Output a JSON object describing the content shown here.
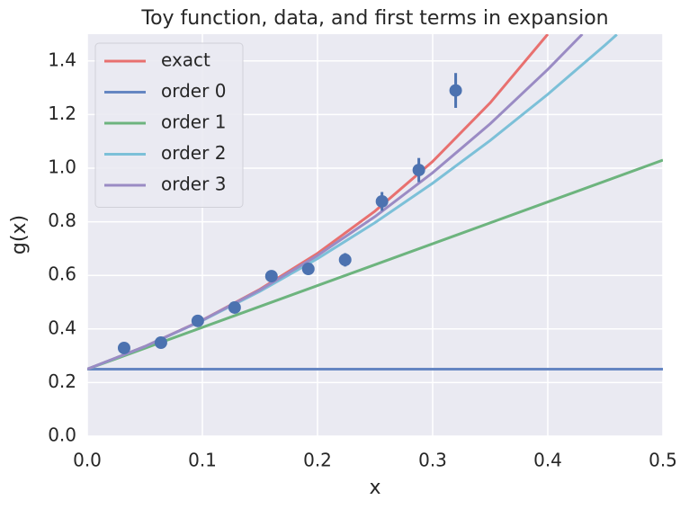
{
  "chart_data": {
    "type": "line",
    "title": "Toy function, data, and first terms in expansion",
    "xlabel": "x",
    "ylabel": "g(x)",
    "xlim": [
      0,
      0.5
    ],
    "ylim": [
      0,
      1.5
    ],
    "xticks": [
      {
        "value": 0,
        "label": "0.0"
      },
      0.1,
      0.2,
      0.3,
      0.4,
      0.5
    ],
    "yticks": [
      {
        "value": 0,
        "label": "0.0"
      },
      0.2,
      0.4,
      0.6,
      0.8,
      {
        "value": 1,
        "label": "1.0"
      },
      1.2,
      1.4
    ],
    "grid": true,
    "legend": "upper left",
    "series": [
      {
        "name": "exact",
        "color": "#e8706f",
        "x": [
          0,
          0.05,
          0.1,
          0.15,
          0.2,
          0.25,
          0.3,
          0.35,
          0.4
        ],
        "values": [
          0.25,
          0.3345,
          0.433,
          0.548,
          0.682,
          0.84,
          1.025,
          1.244,
          1.5
        ]
      },
      {
        "name": "order 0",
        "color": "#6586c2",
        "x": [
          0,
          0.5
        ],
        "values": [
          0.25,
          0.25
        ]
      },
      {
        "name": "order 1",
        "color": "#6db47e",
        "x": [
          0,
          0.5
        ],
        "values": [
          0.25,
          1.03
        ]
      },
      {
        "name": "order 2",
        "color": "#7cc0d8",
        "x": [
          0,
          0.05,
          0.1,
          0.15,
          0.2,
          0.25,
          0.3,
          0.35,
          0.4,
          0.45,
          0.46
        ],
        "values": [
          0.25,
          0.3343,
          0.4311,
          0.5405,
          0.6624,
          0.7969,
          0.9439,
          1.1035,
          1.2756,
          1.4603,
          1.4987
        ]
      },
      {
        "name": "order 3",
        "color": "#9a8bc4",
        "x": [
          0,
          0.05,
          0.1,
          0.15,
          0.2,
          0.25,
          0.3,
          0.35,
          0.4,
          0.43
        ],
        "values": [
          0.25,
          0.3345,
          0.4326,
          0.5454,
          0.674,
          0.8196,
          0.983,
          1.1657,
          1.3684,
          1.5
        ]
      }
    ],
    "points": {
      "color": "#4c72b0",
      "x": [
        0.032,
        0.064,
        0.096,
        0.128,
        0.16,
        0.192,
        0.224,
        0.256,
        0.288,
        0.32
      ],
      "values": [
        0.329,
        0.349,
        0.43,
        0.48,
        0.597,
        0.624,
        0.658,
        0.876,
        0.993,
        1.29
      ],
      "errors": [
        0.005,
        0.008,
        0.01,
        0.012,
        0.02,
        0.02,
        0.025,
        0.035,
        0.045,
        0.065
      ]
    }
  }
}
